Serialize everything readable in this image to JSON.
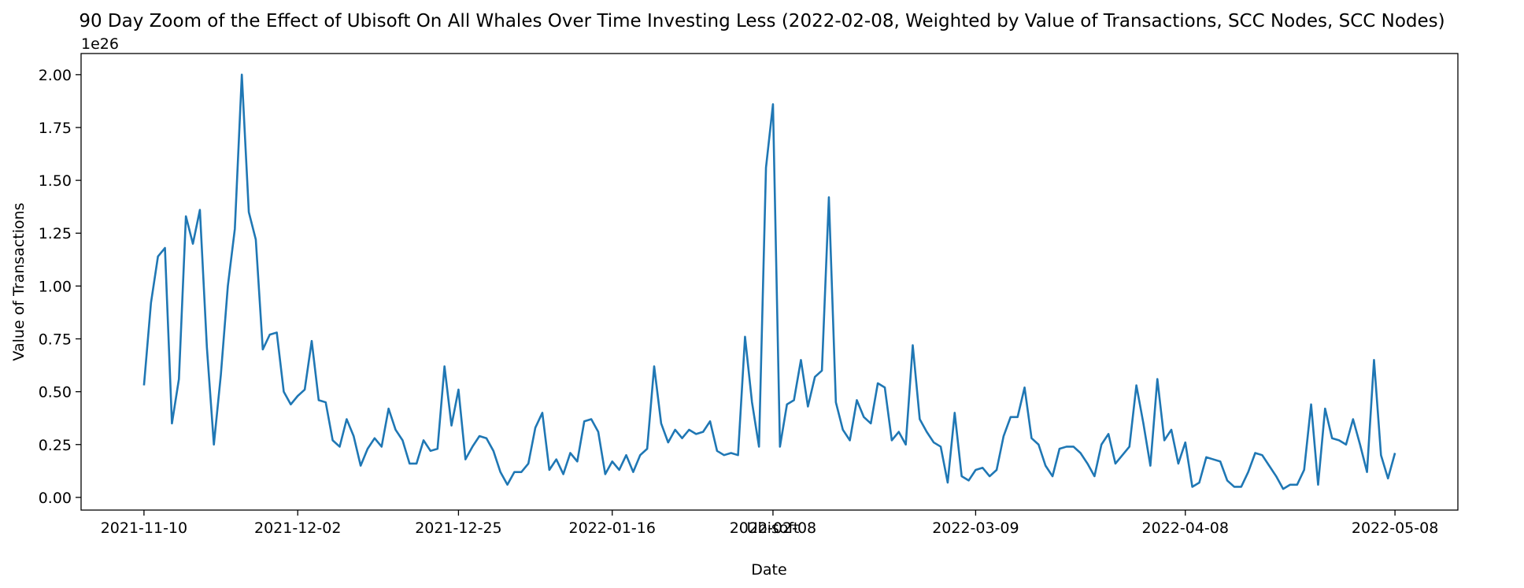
{
  "chart_data": {
    "type": "line",
    "title": "90 Day Zoom of the Effect of Ubisoft On All Whales Over Time Investing Less (2022-02-08, Weighted by Value of Transactions, SCC Nodes, SCC Nodes)",
    "xlabel": "Date",
    "ylabel": "Value of Transactions",
    "y_offset_label": "1e26",
    "y_scale_exponent": 26,
    "ylim": [
      -0.06,
      2.1
    ],
    "xlim": [
      "2021-11-01",
      "2022-05-17"
    ],
    "grid": false,
    "line_color": "#1f77b4",
    "x_ticks": [
      "2021-11-10",
      "2021-12-02",
      "2021-12-25",
      "2022-01-16",
      "2022-02-08",
      "2022-03-09",
      "2022-04-08",
      "2022-05-08"
    ],
    "event_marker": {
      "date": "2022-02-08",
      "label": "Ubisoft"
    },
    "y_ticks": [
      "0.00",
      "0.25",
      "0.50",
      "0.75",
      "1.00",
      "1.25",
      "1.50",
      "1.75",
      "2.00"
    ],
    "series": [
      {
        "x": [
          "2021-11-10",
          "2021-11-11",
          "2021-11-12",
          "2021-11-13",
          "2021-11-14",
          "2021-11-15",
          "2021-11-16",
          "2021-11-17",
          "2021-11-18",
          "2021-11-19",
          "2021-11-20",
          "2021-11-21",
          "2021-11-22",
          "2021-11-23",
          "2021-11-24",
          "2021-11-25",
          "2021-11-26",
          "2021-11-27",
          "2021-11-28",
          "2021-11-29",
          "2021-11-30",
          "2021-12-01",
          "2021-12-02",
          "2021-12-03",
          "2021-12-04",
          "2021-12-05",
          "2021-12-06",
          "2021-12-07",
          "2021-12-08",
          "2021-12-09",
          "2021-12-10",
          "2021-12-11",
          "2021-12-12",
          "2021-12-13",
          "2021-12-14",
          "2021-12-15",
          "2021-12-16",
          "2021-12-17",
          "2021-12-18",
          "2021-12-19",
          "2021-12-20",
          "2021-12-21",
          "2021-12-22",
          "2021-12-23",
          "2021-12-24",
          "2021-12-25",
          "2021-12-26",
          "2021-12-27",
          "2021-12-28",
          "2021-12-29",
          "2021-12-30",
          "2021-12-31",
          "2022-01-01",
          "2022-01-02",
          "2022-01-03",
          "2022-01-04",
          "2022-01-05",
          "2022-01-06",
          "2022-01-07",
          "2022-01-08",
          "2022-01-09",
          "2022-01-10",
          "2022-01-11",
          "2022-01-12",
          "2022-01-13",
          "2022-01-14",
          "2022-01-15",
          "2022-01-16",
          "2022-01-17",
          "2022-01-18",
          "2022-01-19",
          "2022-01-20",
          "2022-01-21",
          "2022-01-22",
          "2022-01-23",
          "2022-01-24",
          "2022-01-25",
          "2022-01-26",
          "2022-01-27",
          "2022-01-28",
          "2022-01-29",
          "2022-01-30",
          "2022-01-31",
          "2022-02-01",
          "2022-02-02",
          "2022-02-03",
          "2022-02-04",
          "2022-02-05",
          "2022-02-06",
          "2022-02-07",
          "2022-02-08",
          "2022-02-09",
          "2022-02-10",
          "2022-02-11",
          "2022-02-12",
          "2022-02-13",
          "2022-02-14",
          "2022-02-15",
          "2022-02-16",
          "2022-02-17",
          "2022-02-18",
          "2022-02-19",
          "2022-02-20",
          "2022-02-21",
          "2022-02-22",
          "2022-02-23",
          "2022-02-24",
          "2022-02-25",
          "2022-02-26",
          "2022-02-27",
          "2022-02-28",
          "2022-03-01",
          "2022-03-02",
          "2022-03-03",
          "2022-03-04",
          "2022-03-05",
          "2022-03-06",
          "2022-03-07",
          "2022-03-08",
          "2022-03-09",
          "2022-03-10",
          "2022-03-11",
          "2022-03-12",
          "2022-03-13",
          "2022-03-14",
          "2022-03-15",
          "2022-03-16",
          "2022-03-17",
          "2022-03-18",
          "2022-03-19",
          "2022-03-20",
          "2022-03-21",
          "2022-03-22",
          "2022-03-23",
          "2022-03-24",
          "2022-03-25",
          "2022-03-26",
          "2022-03-27",
          "2022-03-28",
          "2022-03-29",
          "2022-03-30",
          "2022-03-31",
          "2022-04-01",
          "2022-04-02",
          "2022-04-03",
          "2022-04-04",
          "2022-04-05",
          "2022-04-06",
          "2022-04-07",
          "2022-04-08",
          "2022-04-09",
          "2022-04-10",
          "2022-04-11",
          "2022-04-12",
          "2022-04-13",
          "2022-04-14",
          "2022-04-15",
          "2022-04-16",
          "2022-04-17",
          "2022-04-18",
          "2022-04-19",
          "2022-04-20",
          "2022-04-21",
          "2022-04-22",
          "2022-04-23",
          "2022-04-24",
          "2022-04-25",
          "2022-04-26",
          "2022-04-27",
          "2022-04-28",
          "2022-04-29",
          "2022-04-30",
          "2022-05-01",
          "2022-05-02",
          "2022-05-03",
          "2022-05-04",
          "2022-05-05",
          "2022-05-06",
          "2022-05-07",
          "2022-05-08"
        ],
        "y": [
          0.53,
          0.92,
          1.14,
          1.18,
          0.35,
          0.56,
          1.33,
          1.2,
          1.36,
          0.71,
          0.25,
          0.58,
          1.0,
          1.27,
          2.0,
          1.35,
          1.22,
          0.7,
          0.77,
          0.78,
          0.5,
          0.44,
          0.48,
          0.51,
          0.74,
          0.46,
          0.45,
          0.27,
          0.24,
          0.37,
          0.29,
          0.15,
          0.23,
          0.28,
          0.24,
          0.42,
          0.32,
          0.27,
          0.16,
          0.16,
          0.27,
          0.22,
          0.23,
          0.62,
          0.34,
          0.51,
          0.18,
          0.24,
          0.29,
          0.28,
          0.22,
          0.12,
          0.06,
          0.12,
          0.12,
          0.16,
          0.33,
          0.4,
          0.13,
          0.18,
          0.11,
          0.21,
          0.17,
          0.36,
          0.37,
          0.31,
          0.11,
          0.17,
          0.13,
          0.2,
          0.12,
          0.2,
          0.23,
          0.62,
          0.35,
          0.26,
          0.32,
          0.28,
          0.32,
          0.3,
          0.31,
          0.36,
          0.22,
          0.2,
          0.21,
          0.2,
          0.76,
          0.45,
          0.24,
          1.56,
          1.86,
          0.24,
          0.44,
          0.46,
          0.65,
          0.43,
          0.57,
          0.6,
          1.42,
          0.45,
          0.32,
          0.27,
          0.46,
          0.38,
          0.35,
          0.54,
          0.52,
          0.27,
          0.31,
          0.25,
          0.72,
          0.37,
          0.31,
          0.26,
          0.24,
          0.07,
          0.4,
          0.1,
          0.08,
          0.13,
          0.14,
          0.1,
          0.13,
          0.29,
          0.38,
          0.38,
          0.52,
          0.28,
          0.25,
          0.15,
          0.1,
          0.23,
          0.24,
          0.24,
          0.21,
          0.16,
          0.1,
          0.25,
          0.3,
          0.16,
          0.2,
          0.24,
          0.53,
          0.35,
          0.15,
          0.56,
          0.27,
          0.32,
          0.16,
          0.26,
          0.05,
          0.07,
          0.19,
          0.18,
          0.17,
          0.08,
          0.05,
          0.05,
          0.12,
          0.21,
          0.2,
          0.15,
          0.1,
          0.04,
          0.06,
          0.06,
          0.13,
          0.44,
          0.06,
          0.42,
          0.28,
          0.27,
          0.25,
          0.37,
          0.25,
          0.12,
          0.65,
          0.2,
          0.09,
          0.21
        ]
      }
    ]
  }
}
